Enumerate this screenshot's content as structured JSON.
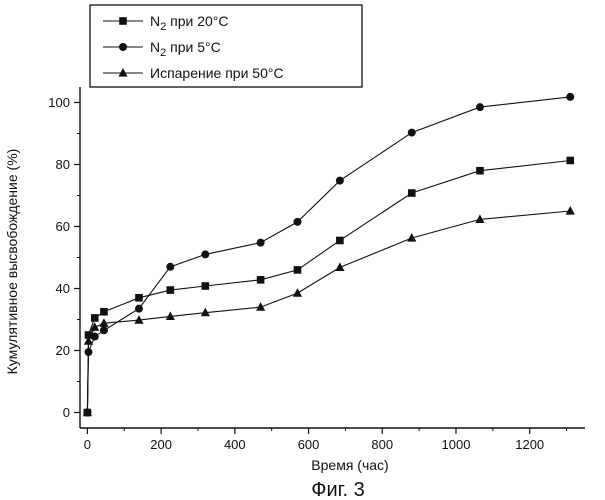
{
  "chart_data": {
    "type": "line",
    "xlabel": "Время (час)",
    "ylabel": "Кумулятивное высвобождение (%)",
    "caption": "Фиг. 3",
    "xlim": [
      -20,
      1350
    ],
    "ylim": [
      -5,
      105
    ],
    "xticks": [
      0,
      200,
      400,
      600,
      800,
      1000,
      1200
    ],
    "yticks": [
      0,
      20,
      40,
      60,
      80,
      100
    ],
    "legend_position": "top-left",
    "series": [
      {
        "name_main": "N",
        "name_sub": "2",
        "name_rest": " при 20°C",
        "marker": "square",
        "x": [
          0,
          3,
          20,
          45,
          140,
          225,
          320,
          470,
          570,
          685,
          880,
          1065,
          1310
        ],
        "y": [
          0,
          25,
          30.5,
          32.5,
          37,
          39.5,
          40.8,
          42.8,
          46,
          55.5,
          70.8,
          78,
          81.3
        ]
      },
      {
        "name_main": "N",
        "name_sub": "2",
        "name_rest": " при 5°C",
        "marker": "circle",
        "x": [
          0,
          3,
          20,
          45,
          140,
          225,
          320,
          470,
          570,
          685,
          880,
          1065,
          1310
        ],
        "y": [
          0,
          19.5,
          24.5,
          26.5,
          33.5,
          47,
          51,
          54.8,
          61.5,
          74.8,
          90.3,
          98.5,
          101.8
        ]
      },
      {
        "name_main": "Испарение при 50°C",
        "name_sub": "",
        "name_rest": "",
        "marker": "triangle",
        "x": [
          0,
          3,
          20,
          45,
          140,
          225,
          320,
          470,
          570,
          685,
          880,
          1065,
          1310
        ],
        "y": [
          0,
          23,
          27.5,
          28.8,
          29.8,
          31,
          32.2,
          34,
          38.5,
          46.8,
          56.3,
          62.3,
          65
        ]
      }
    ]
  }
}
